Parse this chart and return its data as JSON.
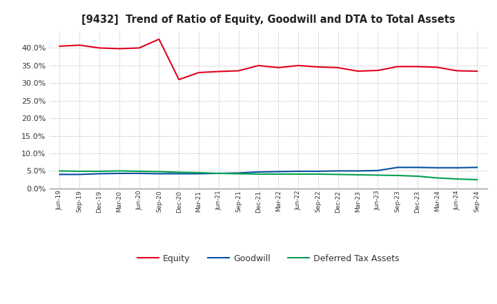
{
  "title": "[9432]  Trend of Ratio of Equity, Goodwill and DTA to Total Assets",
  "x_labels": [
    "Jun-19",
    "Sep-19",
    "Dec-19",
    "Mar-20",
    "Jun-20",
    "Sep-20",
    "Dec-20",
    "Mar-21",
    "Jun-21",
    "Sep-21",
    "Dec-21",
    "Mar-22",
    "Jun-22",
    "Sep-22",
    "Dec-22",
    "Mar-23",
    "Jun-23",
    "Sep-23",
    "Dec-23",
    "Mar-24",
    "Jun-24",
    "Sep-24"
  ],
  "equity": [
    0.405,
    0.408,
    0.4,
    0.398,
    0.4,
    0.425,
    0.31,
    0.33,
    0.333,
    0.335,
    0.35,
    0.344,
    0.35,
    0.346,
    0.344,
    0.334,
    0.336,
    0.347,
    0.347,
    0.345,
    0.335,
    0.334
  ],
  "goodwill": [
    0.04,
    0.04,
    0.042,
    0.043,
    0.043,
    0.042,
    0.042,
    0.042,
    0.043,
    0.044,
    0.047,
    0.048,
    0.049,
    0.049,
    0.05,
    0.05,
    0.051,
    0.06,
    0.06,
    0.059,
    0.059,
    0.06
  ],
  "dta": [
    0.05,
    0.049,
    0.049,
    0.05,
    0.049,
    0.048,
    0.046,
    0.045,
    0.043,
    0.042,
    0.041,
    0.041,
    0.041,
    0.041,
    0.04,
    0.039,
    0.038,
    0.037,
    0.035,
    0.03,
    0.027,
    0.025
  ],
  "equity_color": "#e0001b",
  "goodwill_color": "#0050a0",
  "dta_color": "#00a050",
  "bg_color": "#ffffff",
  "plot_bg_color": "#ffffff",
  "grid_color": "#aaaaaa",
  "ylim": [
    0.0,
    0.45
  ],
  "yticks": [
    0.0,
    0.05,
    0.1,
    0.15,
    0.2,
    0.25,
    0.3,
    0.35,
    0.4
  ],
  "legend_labels": [
    "Equity",
    "Goodwill",
    "Deferred Tax Assets"
  ]
}
